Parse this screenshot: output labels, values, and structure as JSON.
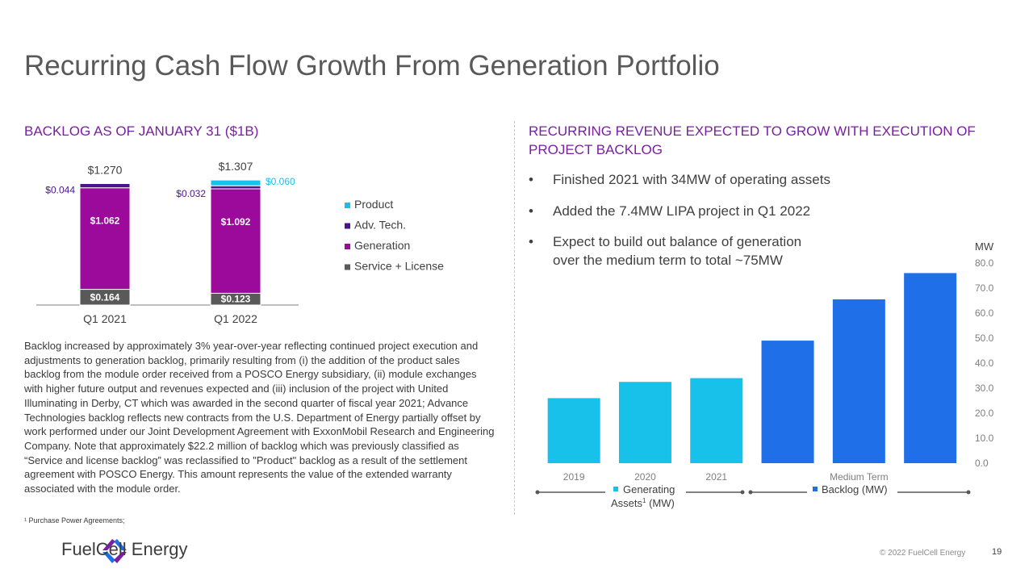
{
  "title": "Recurring Cash Flow Growth From Generation Portfolio",
  "left_heading": "BACKLOG AS OF JANUARY 31 ($1B)",
  "right_heading": "RECURRING REVENUE EXPECTED TO GROW WITH EXECUTION OF PROJECT BACKLOG",
  "bullets": [
    "Finished 2021 with 34MW of operating assets",
    "Added the 7.4MW LIPA project in Q1 2022",
    "Expect to build out balance of generation over the medium term to total ~75MW"
  ],
  "bullet_lines": [
    [
      "Finished 2021 with 34MW of operating assets"
    ],
    [
      "Added the 7.4MW LIPA project in Q1 2022"
    ],
    [
      "Expect to build out balance of generation",
      "over the medium term to total ~75MW"
    ]
  ],
  "bullet_symbol": "•",
  "body_text": "Backlog increased by approximately 3% year-over-year reflecting continued project execution and adjustments to generation backlog, primarily resulting from (i) the addition of the product sales backlog from the module order received from a POSCO Energy subsidiary, (ii) module exchanges with higher future output and revenues expected and (iii) inclusion of the project with United Illuminating in Derby, CT which was awarded in the second quarter of fiscal year 2021; Advance Technologies backlog reflects new contracts from the U.S. Department of Energy partially offset by work performed under our Joint Development Agreement with ExxonMobil Research and Engineering Company. Note that approximately $22.2 million of backlog which was previously classified as “Service and license backlog” was reclassified to \"Product\" backlog as a result of the settlement agreement with POSCO Energy. This amount represents the value of the extended warranty associated with the module order.",
  "footnote": "¹ Purchase Power Agreements;",
  "copyright": "© 2022 FuelCell Energy",
  "page_number": "19",
  "logo": {
    "text": "FuelCell Energy",
    "icon": "fuelcell-logo-icon"
  },
  "chart_data": [
    {
      "type": "bar",
      "stacked": true,
      "categories": [
        "Q1 2021",
        "Q1 2022"
      ],
      "series": [
        {
          "name": "Service + License",
          "color": "#595959",
          "values": [
            0.164,
            0.123
          ],
          "labels": [
            "$0.164",
            "$0.123"
          ]
        },
        {
          "name": "Generation",
          "color": "#9b0a9b",
          "values": [
            1.062,
            1.092
          ],
          "labels": [
            "$1.062",
            "$1.092"
          ]
        },
        {
          "name": "Adv. Tech.",
          "color": "#4a148c",
          "values": [
            0.044,
            0.032
          ],
          "labels": [
            "$0.044",
            "$0.032"
          ]
        },
        {
          "name": "Product",
          "color": "#17c1ea",
          "values": [
            0,
            0.06
          ],
          "labels": [
            "",
            "$0.060"
          ]
        }
      ],
      "totals": [
        1.27,
        1.307
      ],
      "total_labels": [
        "$1.270",
        "$1.307"
      ],
      "legend_order": [
        "Product",
        "Adv. Tech.",
        "Generation",
        "Service + License"
      ],
      "legend_position": "right",
      "ylim": [
        0,
        1.35
      ]
    },
    {
      "type": "bar",
      "x_tick_labels": [
        "2019",
        "2020",
        "2021",
        "",
        "Medium Term",
        ""
      ],
      "values": [
        26,
        32.5,
        34,
        49,
        65.5,
        76
      ],
      "groups": [
        {
          "name": "Generating Assets¹ (MW)",
          "label_line1": "Generating",
          "label_line2": "Assets",
          "label_sup": "1",
          "label_suffix": " (MW)",
          "color": "#17c1ea",
          "indices": [
            0,
            1,
            2
          ]
        },
        {
          "name": "Backlog (MW)",
          "label": "Backlog (MW)",
          "color": "#1f6fe8",
          "indices": [
            3,
            4,
            5
          ]
        }
      ],
      "ylabel": "MW",
      "yticks": [
        "0.0",
        "10.0",
        "20.0",
        "30.0",
        "40.0",
        "50.0",
        "60.0",
        "70.0",
        "80.0"
      ],
      "ylim": [
        0,
        80
      ],
      "grid": false
    }
  ]
}
